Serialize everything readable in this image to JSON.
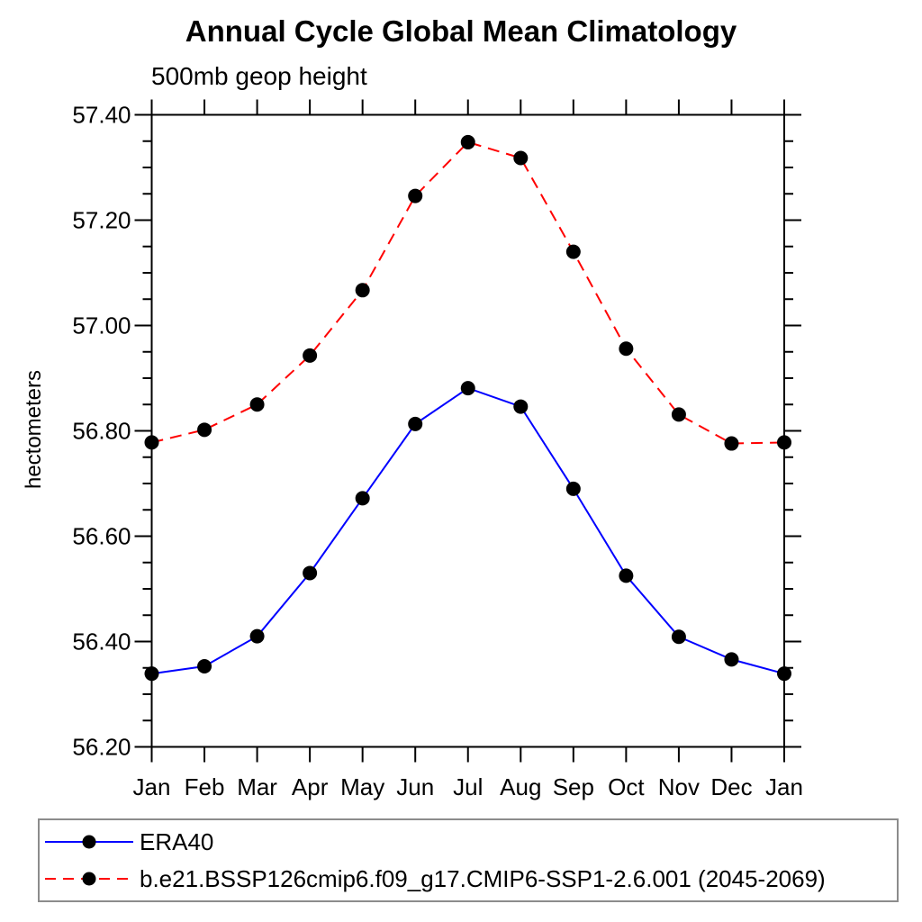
{
  "title": "Annual Cycle Global Mean Climatology",
  "subtitle": "500mb geop height",
  "ylabel": "hectometers",
  "legend": {
    "items": [
      {
        "label": "ERA40"
      },
      {
        "label": "b.e21.BSSP126cmip6.f09_g17.CMIP6-SSP1-2.6.001 (2045-2069)"
      }
    ]
  },
  "chart_data": {
    "type": "line",
    "title": "Annual Cycle Global Mean Climatology",
    "subtitle": "500mb geop height",
    "ylabel": "hectometers",
    "categories": [
      "Jan",
      "Feb",
      "Mar",
      "Apr",
      "May",
      "Jun",
      "Jul",
      "Aug",
      "Sep",
      "Oct",
      "Nov",
      "Dec",
      "Jan"
    ],
    "series": [
      {
        "name": "ERA40",
        "color": "#0000ff",
        "line_style": "solid",
        "marker": "circle",
        "marker_color": "#000000",
        "values": [
          56.339,
          56.353,
          56.41,
          56.53,
          56.672,
          56.813,
          56.881,
          56.846,
          56.69,
          56.525,
          56.409,
          56.366,
          56.339
        ]
      },
      {
        "name": "b.e21.BSSP126cmip6.f09_g17.CMIP6-SSP1-2.6.001 (2045-2069)",
        "color": "#ff0000",
        "line_style": "dashed",
        "marker": "circle",
        "marker_color": "#000000",
        "values": [
          56.778,
          56.802,
          56.85,
          56.943,
          57.067,
          57.246,
          57.348,
          57.318,
          57.14,
          56.956,
          56.831,
          56.776,
          56.778
        ]
      }
    ],
    "ylim": [
      56.2,
      57.4
    ],
    "y_major_tick_step": 0.2,
    "y_minor_tick_step": 0.05,
    "y_tick_labels": [
      "57.40",
      "57.20",
      "57.00",
      "56.80",
      "56.60",
      "56.40",
      "56.20"
    ],
    "grid": false,
    "legend_position": "bottom-left-box"
  }
}
